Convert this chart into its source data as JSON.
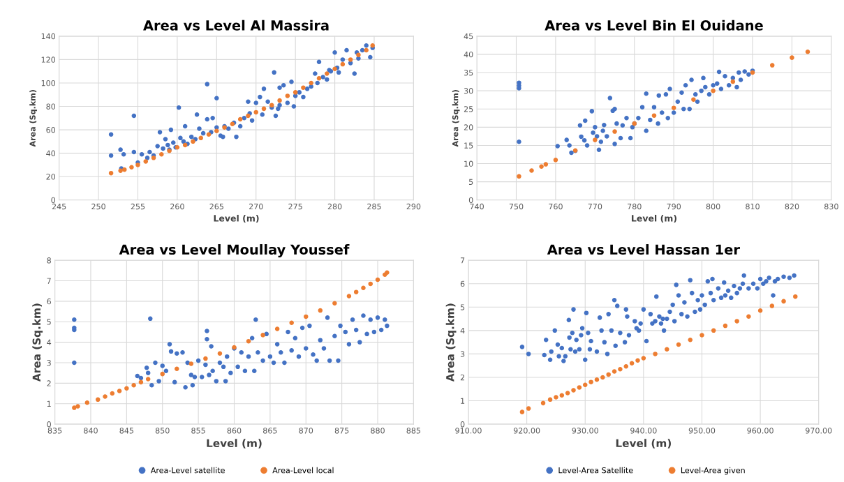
{
  "chart_data": [
    {
      "type": "scatter",
      "title": "Area vs Level Al Massira",
      "xlabel": "Level (m)",
      "ylabel": "Area (Sq.km)",
      "xlim": [
        245,
        290
      ],
      "xticks": [
        245,
        250,
        255,
        260,
        265,
        270,
        275,
        280,
        285,
        290
      ],
      "ylim": [
        0,
        140
      ],
      "yticks": [
        0,
        20,
        40,
        60,
        80,
        100,
        120,
        140
      ],
      "grid": true,
      "marker": "circle",
      "legend": false,
      "series": [
        {
          "color": "#4472c4",
          "x": [
            251.6,
            251.6,
            252.8,
            253.2,
            252.9,
            254.5,
            254.5,
            255,
            255.5,
            256.2,
            256.5,
            257,
            257.8,
            257.5,
            258.2,
            258.5,
            258.8,
            259,
            259.2,
            259.5,
            259.8,
            260.2,
            260.4,
            260.8,
            261,
            261.3,
            261.8,
            262.3,
            262.5,
            262.8,
            263.3,
            263.8,
            263.8,
            264.3,
            264.5,
            265,
            265,
            265.5,
            265.8,
            266,
            266.5,
            267.5,
            267.2,
            268,
            268.5,
            269,
            269.2,
            269.5,
            270,
            270.5,
            270.8,
            271,
            271.5,
            272,
            272.3,
            272.5,
            272.8,
            273,
            273,
            273.5,
            274,
            274.5,
            274.8,
            275,
            275.5,
            276,
            276.5,
            277,
            277.5,
            277.8,
            278,
            278.5,
            279,
            279.3,
            279.5,
            280,
            280.3,
            280.5,
            281,
            281.5,
            282,
            282.5,
            282.8,
            283,
            283.5,
            284,
            284.5,
            284.8
          ],
          "values": [
            56,
            38,
            43,
            39,
            27,
            72,
            41,
            32,
            39,
            36,
            41,
            38,
            58,
            46,
            44,
            52,
            47,
            43,
            60,
            49,
            45,
            79,
            53,
            50,
            63,
            48,
            54,
            52,
            73,
            61,
            57,
            99,
            69,
            58,
            70,
            87,
            62,
            55,
            54,
            63,
            61,
            54,
            66,
            63,
            70,
            84,
            74,
            68,
            83,
            88,
            73,
            95,
            84,
            79,
            109,
            72,
            78,
            96,
            81,
            98,
            83,
            101,
            80,
            89,
            92,
            88,
            95,
            97,
            108,
            100,
            118,
            105,
            103,
            111,
            110,
            126,
            113,
            109,
            120,
            128,
            117,
            108,
            126,
            121,
            128,
            132,
            122,
            130
          ]
        },
        {
          "color": "#ed7d31",
          "x": [
            251.6,
            252.8,
            253.3,
            254.2,
            255,
            256,
            257,
            258,
            259,
            260,
            261,
            262,
            263,
            264,
            265,
            266,
            267,
            268,
            269,
            270,
            271,
            272,
            273,
            274,
            275,
            276,
            277,
            278,
            279,
            280,
            281,
            282,
            283,
            284,
            284.8
          ],
          "values": [
            23,
            25,
            26,
            28,
            30,
            33,
            36,
            39,
            42,
            45,
            47,
            50,
            53,
            56,
            59,
            62,
            65,
            69,
            72,
            75,
            78,
            81,
            85,
            89,
            92,
            96,
            100,
            104,
            108,
            112,
            116,
            120,
            124,
            128,
            132
          ]
        }
      ]
    },
    {
      "type": "scatter",
      "title": "Area vs Level Bin El Ouidane",
      "xlabel": "Level (m)",
      "ylabel": "Area (Sq.km)",
      "xlim": [
        740,
        830
      ],
      "xticks": [
        740,
        750,
        760,
        770,
        780,
        790,
        800,
        810,
        820,
        830
      ],
      "ylim": [
        0,
        45
      ],
      "yticks": [
        0,
        5,
        10,
        15,
        20,
        25,
        30,
        35,
        40,
        45
      ],
      "grid": true,
      "marker": "circle",
      "legend": false,
      "series": [
        {
          "color": "#4472c4",
          "x": [
            750.7,
            750.7,
            750.7,
            750.7,
            760.5,
            762.8,
            763.5,
            764,
            765,
            766.2,
            766.5,
            767.3,
            767.5,
            768,
            769.2,
            769.5,
            770,
            770.5,
            771,
            771.5,
            772,
            772.3,
            773,
            773.8,
            774.5,
            775,
            775,
            775.5,
            776.5,
            777,
            778,
            779,
            779.5,
            780,
            781,
            782,
            783,
            783,
            784,
            785,
            786,
            786.2,
            787,
            788,
            788.5,
            789,
            790,
            791,
            792,
            792.5,
            793,
            794,
            794.5,
            795.5,
            796,
            797,
            797.5,
            798,
            799,
            800,
            801,
            801.5,
            802,
            803,
            804,
            805,
            806,
            806.5,
            807,
            808,
            809,
            810
          ],
          "values": [
            32.2,
            31.4,
            30.7,
            16,
            14.8,
            16.5,
            15,
            13,
            13.5,
            20.5,
            17.4,
            16.4,
            21.8,
            15,
            24.4,
            18.5,
            20,
            17.5,
            13.8,
            16,
            19,
            20.6,
            17.5,
            28,
            24.5,
            25,
            15.4,
            21,
            17,
            20.5,
            22.5,
            17,
            20,
            21,
            22.5,
            25.5,
            29.2,
            19,
            22,
            25.5,
            21,
            28.7,
            24,
            29,
            22.5,
            30.5,
            24,
            27,
            29.5,
            25,
            31.5,
            25,
            33,
            29,
            27,
            30,
            33.5,
            31,
            29,
            31.5,
            32,
            35.2,
            30.5,
            34,
            31.5,
            33.5,
            31,
            35,
            33,
            35.3,
            34.5,
            35.5
          ]
        },
        {
          "color": "#ed7d31",
          "x": [
            750.7,
            753.9,
            756.4,
            757.5,
            760,
            765,
            770,
            775,
            780,
            785,
            790,
            795,
            800,
            805,
            810,
            815,
            820,
            824
          ],
          "values": [
            6.5,
            8.1,
            9.2,
            9.8,
            11,
            13.6,
            16.5,
            18.8,
            21,
            23.2,
            25.3,
            27.6,
            30,
            32.5,
            35,
            37,
            39.1,
            40.7
          ]
        }
      ]
    },
    {
      "type": "scatter",
      "title": "Area vs Level Moullay Youssef",
      "xlabel": "Level (m)",
      "ylabel": "Area (Sq.km)",
      "xlim": [
        835,
        885
      ],
      "xticks": [
        835,
        840,
        845,
        850,
        855,
        860,
        865,
        870,
        875,
        880,
        885
      ],
      "ylim": [
        0,
        8
      ],
      "yticks": [
        0,
        1,
        2,
        3,
        4,
        5,
        6,
        7,
        8
      ],
      "grid": true,
      "marker": "circle",
      "legend": "bottom",
      "series": [
        {
          "name": "Area-Level satellite",
          "color": "#4472c4",
          "x": [
            837.7,
            837.7,
            837.7,
            837.7,
            846.5,
            847,
            847.8,
            848,
            848.3,
            848.5,
            849,
            849.5,
            850,
            850.5,
            851,
            851.2,
            851.7,
            852,
            852.8,
            853.2,
            853.5,
            854,
            854.2,
            854.5,
            855,
            855.5,
            856,
            856.2,
            856.2,
            856.5,
            856.8,
            857,
            857.5,
            858,
            858.5,
            858.8,
            859,
            859.5,
            860,
            860.5,
            861,
            861.5,
            862,
            862.5,
            862.8,
            863,
            863.3,
            864,
            864.5,
            865,
            865.5,
            866,
            866.5,
            867,
            867.5,
            868,
            868.5,
            869,
            869.5,
            870,
            870.5,
            871,
            871.5,
            872,
            872.5,
            873,
            873.3,
            874,
            874.5,
            874.8,
            875.5,
            876,
            876.5,
            877,
            877.5,
            878,
            878.5,
            879,
            879.5,
            880,
            880.5,
            881,
            881.3
          ],
          "values": [
            5.1,
            4.7,
            4.6,
            3,
            2.35,
            2.25,
            2.75,
            2.5,
            5.15,
            1.9,
            3,
            2.1,
            2.85,
            2.6,
            3.9,
            3.55,
            2.05,
            3.45,
            3.5,
            1.8,
            3,
            2.4,
            1.9,
            2.3,
            3.1,
            2.3,
            2.9,
            4.55,
            4.15,
            2.4,
            3.8,
            2.6,
            2.1,
            3,
            2.8,
            2.1,
            3.3,
            2.5,
            3.7,
            2.8,
            3.5,
            2.6,
            3.3,
            4.2,
            2.6,
            5.1,
            3.5,
            3.1,
            4.4,
            3.3,
            3,
            3.9,
            3.5,
            3,
            4.5,
            3.6,
            4.2,
            3.3,
            4.7,
            3.7,
            4.8,
            3.4,
            3.1,
            4.1,
            3.7,
            5.2,
            3.1,
            4.3,
            3.1,
            4.8,
            4.5,
            3.9,
            5.1,
            4.6,
            4,
            5.3,
            4.4,
            5.1,
            4.5,
            5.2,
            4.6,
            5.1,
            4.8
          ]
        },
        {
          "name": "Area-Level local",
          "color": "#ed7d31",
          "x": [
            837.7,
            838.2,
            839.5,
            841,
            842,
            843,
            844,
            845,
            846,
            847,
            848,
            850,
            852,
            854,
            856,
            858,
            860,
            862,
            864,
            866,
            868,
            870,
            872,
            874,
            876,
            877,
            878,
            879,
            880,
            881,
            881.3
          ],
          "values": [
            0.8,
            0.87,
            1.05,
            1.2,
            1.35,
            1.5,
            1.62,
            1.75,
            1.9,
            2.05,
            2.2,
            2.45,
            2.7,
            2.95,
            3.2,
            3.45,
            3.75,
            4.05,
            4.35,
            4.65,
            4.95,
            5.25,
            5.55,
            5.9,
            6.25,
            6.45,
            6.65,
            6.85,
            7.05,
            7.3,
            7.4
          ]
        }
      ]
    },
    {
      "type": "scatter",
      "title": "Area vs Level Hassan 1er",
      "xlabel": "Level (m)",
      "ylabel": "Area (Sq.km)",
      "xlim": [
        910,
        970
      ],
      "xticks": [
        {
          "value": 910,
          "label": "910.00"
        },
        {
          "value": 920,
          "label": "920.00"
        },
        {
          "value": 930,
          "label": "930.00"
        },
        {
          "value": 940,
          "label": "940.00"
        },
        {
          "value": 950,
          "label": "950.00"
        },
        {
          "value": 960,
          "label": "960.00"
        },
        {
          "value": 970,
          "label": "970.00"
        }
      ],
      "ylim": [
        0,
        7
      ],
      "yticks": [
        0,
        1,
        2,
        3,
        4,
        5,
        6,
        7
      ],
      "grid": true,
      "marker": "circle",
      "legend": "bottom",
      "series": [
        {
          "name": "Level-Area Satellite",
          "color": "#4472c4",
          "x": [
            919.2,
            920.3,
            923,
            923.3,
            924,
            924.2,
            924.8,
            925.3,
            925.5,
            926,
            926.3,
            926.6,
            927.2,
            927.3,
            927.5,
            927.8,
            928,
            928.3,
            928.5,
            929,
            929.3,
            929.5,
            930,
            930.2,
            930.5,
            930.8,
            931,
            932,
            932.5,
            932.8,
            933.3,
            933.8,
            934,
            934.5,
            935,
            935.2,
            935.5,
            936,
            936.8,
            937.2,
            937,
            937.5,
            938.5,
            938.8,
            939.2,
            939.5,
            940,
            940.5,
            941.2,
            941.5,
            942,
            942.2,
            942.7,
            943,
            943.3,
            943.5,
            944,
            944.5,
            945,
            945.3,
            945.6,
            946,
            946.5,
            947,
            947.5,
            948,
            948.3,
            948.8,
            949.3,
            949.7,
            950,
            950.5,
            951,
            951.5,
            951.8,
            952,
            952.8,
            953.3,
            953.8,
            954,
            954.5,
            955,
            955.5,
            956,
            956.5,
            957,
            957.2,
            958,
            958.8,
            959.5,
            960,
            960.5,
            961,
            961.5,
            962.2,
            962.5,
            963,
            964,
            965,
            965.8
          ],
          "values": [
            3.3,
            3,
            2.95,
            3.6,
            2.75,
            3.1,
            4,
            3.4,
            2.9,
            3.25,
            2.7,
            2.9,
            4.45,
            3.7,
            3.2,
            3.9,
            4.9,
            3.1,
            3.6,
            3.2,
            3.8,
            4.1,
            2.75,
            4.75,
            3.9,
            3.2,
            3.55,
            3.1,
            4.55,
            4,
            3.5,
            3,
            4.7,
            4,
            5.3,
            3.35,
            5.05,
            3.9,
            3.5,
            4.6,
            4.9,
            3.8,
            4.4,
            4.1,
            4,
            4.3,
            4.9,
            3.55,
            4.7,
            4.3,
            4.4,
            5.45,
            4.6,
            4.3,
            4.5,
            4,
            4.5,
            4.8,
            5.1,
            4.4,
            5.95,
            5.5,
            4.7,
            5.2,
            4.6,
            6.15,
            5.6,
            4.8,
            5.3,
            4.9,
            5.5,
            5.1,
            6.1,
            5.6,
            6.2,
            5.3,
            5.8,
            5.4,
            6.05,
            5.5,
            5.7,
            5.4,
            5.9,
            5.6,
            5.8,
            6,
            6.35,
            5.8,
            6,
            5.8,
            6.2,
            6,
            6.1,
            6.25,
            5.5,
            6.1,
            6.2,
            6.3,
            6.25,
            6.35
          ]
        },
        {
          "name": "Level-Area given",
          "color": "#ed7d31",
          "x": [
            919.2,
            920.3,
            922.8,
            924,
            925,
            926,
            927,
            928,
            929,
            930,
            931,
            932,
            933,
            934,
            935,
            936,
            937,
            938,
            939,
            940,
            942,
            944,
            946,
            948,
            950,
            952,
            954,
            956,
            958,
            960,
            962,
            964,
            966
          ],
          "values": [
            0.52,
            0.67,
            0.9,
            1.05,
            1.15,
            1.23,
            1.33,
            1.45,
            1.57,
            1.68,
            1.8,
            1.9,
            2,
            2.12,
            2.25,
            2.35,
            2.47,
            2.6,
            2.72,
            2.82,
            3,
            3.2,
            3.4,
            3.6,
            3.8,
            4,
            4.2,
            4.4,
            4.6,
            4.85,
            5.05,
            5.25,
            5.45
          ]
        }
      ]
    }
  ]
}
